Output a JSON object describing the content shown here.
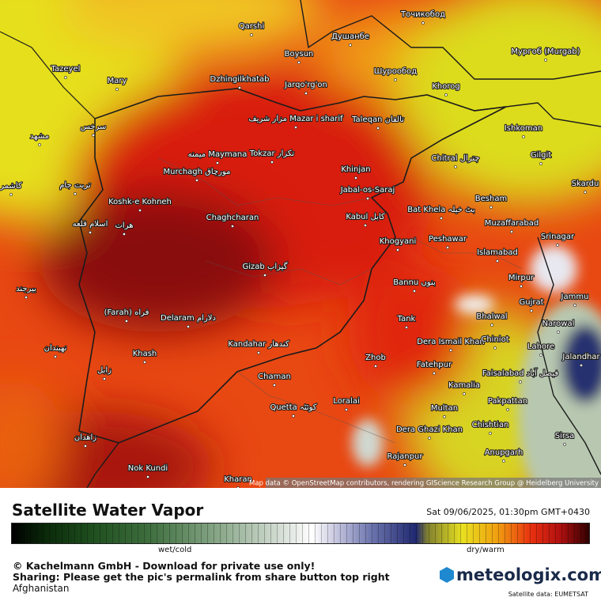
{
  "map": {
    "cities": [
      {
        "label": "Qarshi"
      },
      {
        "label": "Душанбе"
      },
      {
        "label": "Точикобод"
      },
      {
        "label": "Boysun"
      },
      {
        "label": "Tazeyel"
      },
      {
        "label": "Mary"
      },
      {
        "label": "Dzhingilkhatab"
      },
      {
        "label": "Jarqo'rg'on"
      },
      {
        "label": "Шурообод"
      },
      {
        "label": "Мургоб (Murgab)"
      },
      {
        "label": "Khorog"
      },
      {
        "label": "مزار شریف Mazar i sharif"
      },
      {
        "label": "Taleqan تالقان"
      },
      {
        "label": "سرخس"
      },
      {
        "label": "مشهد"
      },
      {
        "label": "Ishkoman"
      },
      {
        "label": "میمنه Maymana"
      },
      {
        "label": "Tokzar تکزار"
      },
      {
        "label": "Chitral چترال"
      },
      {
        "label": "Gilgit"
      },
      {
        "label": "Murchagh مورچاق"
      },
      {
        "label": "Khinjan"
      },
      {
        "label": "کاشمر"
      },
      {
        "label": "تربت جام"
      },
      {
        "label": "Jabal-os-Saraj"
      },
      {
        "label": "Skardu"
      },
      {
        "label": "Koshk-e Kohneh"
      },
      {
        "label": "Chaghcharan"
      },
      {
        "label": "Bat Khela بٹ خیلہ"
      },
      {
        "label": "Besham"
      },
      {
        "label": "Kabul کابل"
      },
      {
        "label": "هرات"
      },
      {
        "label": "اسلام قلعه"
      },
      {
        "label": "Muzaffarabad"
      },
      {
        "label": "Khogyani"
      },
      {
        "label": "Peshawar"
      },
      {
        "label": "Srinagar"
      },
      {
        "label": "Islamabad"
      },
      {
        "label": "Gizab گیزاب"
      },
      {
        "label": "Bannu بنوں"
      },
      {
        "label": "Mirpur"
      },
      {
        "label": "بیرجند"
      },
      {
        "label": "Jammu"
      },
      {
        "label": "Gujrat"
      },
      {
        "label": "(Farah) فراه"
      },
      {
        "label": "Delaram دلارام"
      },
      {
        "label": "Bhalwal"
      },
      {
        "label": "Tank"
      },
      {
        "label": "Narowal"
      },
      {
        "label": "Dera Ismail Khan"
      },
      {
        "label": "Chiniot"
      },
      {
        "label": "Lahore"
      },
      {
        "label": "نهبندان"
      },
      {
        "label": "Kandahar کندهار"
      },
      {
        "label": "Khash"
      },
      {
        "label": "Jalandhar"
      },
      {
        "label": "Zhob"
      },
      {
        "label": "Fatehpur"
      },
      {
        "label": "Faisalabad فیصل آباد"
      },
      {
        "label": "زابل"
      },
      {
        "label": "Chaman"
      },
      {
        "label": "Kamalia"
      },
      {
        "label": "Loralai"
      },
      {
        "label": "Quetta کوئٹہ"
      },
      {
        "label": "Pakpattan"
      },
      {
        "label": "Multan"
      },
      {
        "label": "Dera Ghazi Khan"
      },
      {
        "label": "Chishtian"
      },
      {
        "label": "زاهدان"
      },
      {
        "label": "Sirsa"
      },
      {
        "label": "Anupgarh"
      },
      {
        "label": "Rajanpur"
      },
      {
        "label": "Nok Kundi"
      },
      {
        "label": "Kharan"
      }
    ],
    "attribution": "Map data © OpenStreetMap contributors, rendering GIScience Research Group @ Heidelberg University"
  },
  "footer": {
    "title": "Satellite Water Vapor",
    "timestamp": "Sat 09/06/2025, 01:30pm GMT+0430",
    "scale": {
      "low": "wet/cold",
      "high": "dry/warm"
    },
    "copyright": "© Kachelmann GmbH - Download for private use only!",
    "sharing": "Sharing: Please get the pic's permalink from share button top right",
    "region": "Afghanistan",
    "logo": "meteologix.com",
    "source": "Satellite data: EUMETSAT"
  }
}
